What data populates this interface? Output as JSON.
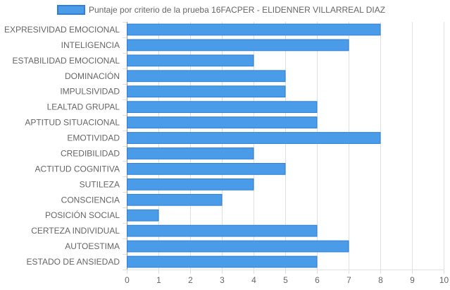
{
  "chart_data": {
    "type": "bar",
    "orientation": "horizontal",
    "categories": [
      "EXPRESIVIDAD EMOCIONAL",
      "INTELIGENCIA",
      "ESTABILIDAD EMOCIONAL",
      "DOMINACIÓN",
      "IMPULSIVIDAD",
      "LEALTAD GRUPAL",
      "APTITUD SITUACIONAL",
      "EMOTIVIDAD",
      "CREDIBILIDAD",
      "ACTITUD COGNITIVA",
      "SUTILEZA",
      "CONSCIENCIA",
      "POSICIÓN SOCIAL",
      "CERTEZA INDIVIDUAL",
      "AUTOESTIMA",
      "ESTADO DE ANSIEDAD"
    ],
    "series": [
      {
        "name": "Puntaje por criterio de la prueba 16FACPER - ELIDENNER VILLARREAL DIAZ",
        "values": [
          8,
          7,
          4,
          5,
          5,
          6,
          6,
          8,
          4,
          5,
          4,
          3,
          1,
          6,
          7,
          6
        ],
        "color": "#4a9be8",
        "border_color": "#2f7fd9"
      }
    ],
    "xlim": [
      0,
      10
    ],
    "x_ticks": [
      "0",
      "1",
      "2",
      "3",
      "4",
      "5",
      "6",
      "7",
      "8",
      "9",
      "10"
    ],
    "grid": true,
    "legend_position": "top",
    "gridline_color": "#e0e0e0",
    "axis_color": "#999999"
  }
}
